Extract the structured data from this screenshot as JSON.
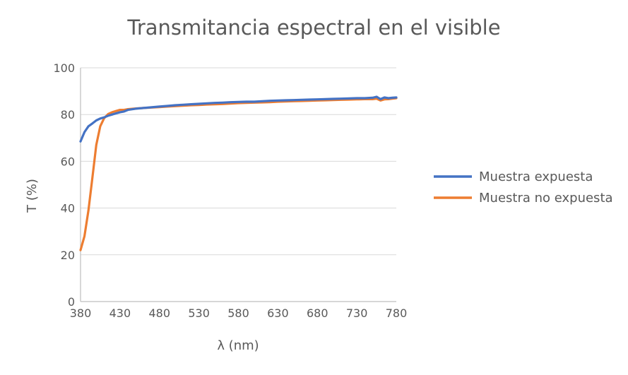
{
  "chart_data": {
    "type": "line",
    "title": "Transmitancia espectral en el visible",
    "xlabel": "λ (nm)",
    "ylabel": "T (%)",
    "xlim": [
      380,
      780
    ],
    "ylim": [
      0,
      100
    ],
    "x_ticks": [
      380,
      430,
      480,
      530,
      580,
      630,
      680,
      730,
      780
    ],
    "y_ticks": [
      0,
      20,
      40,
      60,
      80,
      100
    ],
    "grid": true,
    "legend_position": "right",
    "x": [
      380,
      385,
      390,
      395,
      400,
      405,
      410,
      415,
      420,
      425,
      430,
      435,
      440,
      450,
      460,
      470,
      480,
      490,
      500,
      510,
      520,
      530,
      540,
      550,
      560,
      570,
      580,
      590,
      600,
      610,
      620,
      630,
      640,
      650,
      660,
      670,
      680,
      690,
      700,
      710,
      720,
      730,
      740,
      750,
      755,
      760,
      765,
      770,
      775,
      780
    ],
    "series": [
      {
        "name": "Muestra expuesta",
        "color": "#4472C4",
        "values": [
          68.5,
          72.5,
          75,
          76.2,
          77.5,
          78.3,
          78.8,
          79.5,
          80,
          80.5,
          81,
          81.3,
          82,
          82.5,
          82.8,
          83.1,
          83.4,
          83.7,
          84,
          84.2,
          84.4,
          84.6,
          84.8,
          85,
          85.1,
          85.3,
          85.4,
          85.5,
          85.5,
          85.7,
          85.9,
          86,
          86.1,
          86.2,
          86.3,
          86.4,
          86.5,
          86.6,
          86.7,
          86.8,
          86.9,
          87,
          87,
          87.2,
          87.6,
          86.6,
          87.3,
          87,
          87.2,
          87.3
        ]
      },
      {
        "name": "Muestra no expuesta",
        "color": "#ED7D31",
        "values": [
          22,
          28,
          39,
          53,
          67,
          75,
          78.5,
          80.2,
          81,
          81.5,
          82,
          82,
          82.3,
          82.6,
          82.8,
          83,
          83.2,
          83.4,
          83.6,
          83.8,
          84,
          84.1,
          84.3,
          84.4,
          84.5,
          84.7,
          84.9,
          85,
          85.1,
          85.2,
          85.3,
          85.5,
          85.6,
          85.7,
          85.8,
          85.9,
          86,
          86.1,
          86.2,
          86.3,
          86.4,
          86.5,
          86.6,
          86.6,
          86.8,
          86,
          86.5,
          86.6,
          86.8,
          87
        ]
      }
    ]
  }
}
